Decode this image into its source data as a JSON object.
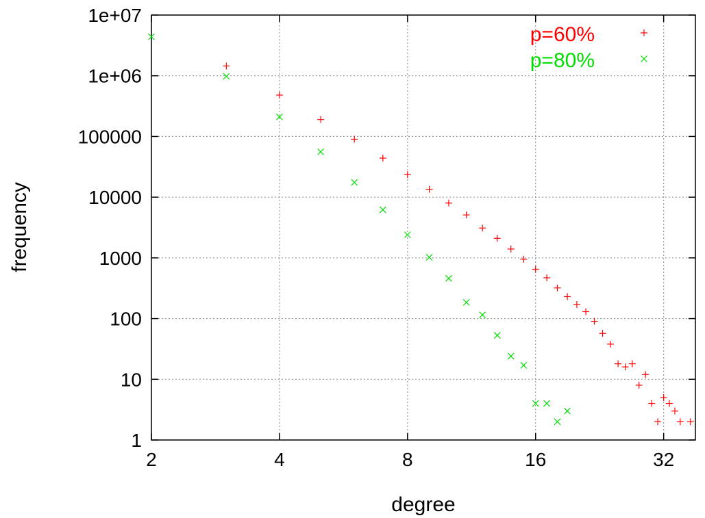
{
  "chart_data": {
    "type": "scatter",
    "xlabel": "degree",
    "ylabel": "frequency",
    "x_scale": "log2",
    "y_scale": "log10",
    "xlim": [
      2,
      38
    ],
    "ylim": [
      1,
      10000000
    ],
    "x_ticks": [
      2,
      4,
      8,
      16,
      32
    ],
    "x_tick_labels": [
      "2",
      "4",
      "8",
      "16",
      "32"
    ],
    "y_ticks": [
      1,
      10,
      100,
      1000,
      10000,
      100000,
      1000000,
      10000000
    ],
    "y_tick_labels": [
      "1",
      "10",
      "100",
      "1000",
      "10000",
      "100000",
      "1e+06",
      "1e+07"
    ],
    "grid": true,
    "legend_position": "top-right",
    "series": [
      {
        "name": "p=60%",
        "marker": "+",
        "color": "#ff0000",
        "points": [
          [
            3,
            1450000
          ],
          [
            4,
            480000
          ],
          [
            5,
            190000
          ],
          [
            6,
            90000
          ],
          [
            7,
            44000
          ],
          [
            8,
            23500
          ],
          [
            9,
            13500
          ],
          [
            10,
            8000
          ],
          [
            11,
            5100
          ],
          [
            12,
            3100
          ],
          [
            13,
            2100
          ],
          [
            14,
            1400
          ],
          [
            15,
            950
          ],
          [
            16,
            650
          ],
          [
            17,
            470
          ],
          [
            18,
            320
          ],
          [
            19,
            230
          ],
          [
            20,
            170
          ],
          [
            21,
            130
          ],
          [
            22,
            90
          ],
          [
            23,
            57
          ],
          [
            24,
            38
          ],
          [
            25,
            18
          ],
          [
            26,
            16
          ],
          [
            27,
            18
          ],
          [
            28,
            8
          ],
          [
            29,
            12
          ],
          [
            30,
            4
          ],
          [
            31,
            2
          ],
          [
            32,
            5
          ],
          [
            33,
            4
          ],
          [
            34,
            3
          ],
          [
            35,
            2
          ],
          [
            37,
            2
          ]
        ]
      },
      {
        "name": "p=80%",
        "marker": "x",
        "color": "#00dd00",
        "points": [
          [
            2,
            4400000
          ],
          [
            3,
            980000
          ],
          [
            4,
            210000
          ],
          [
            5,
            56000
          ],
          [
            6,
            17500
          ],
          [
            7,
            6200
          ],
          [
            8,
            2400
          ],
          [
            9,
            1020
          ],
          [
            10,
            460
          ],
          [
            11,
            185
          ],
          [
            12,
            115
          ],
          [
            13,
            53
          ],
          [
            14,
            24
          ],
          [
            15,
            17
          ],
          [
            16,
            4
          ],
          [
            17,
            4
          ],
          [
            18,
            2
          ],
          [
            19,
            3
          ]
        ]
      }
    ]
  }
}
